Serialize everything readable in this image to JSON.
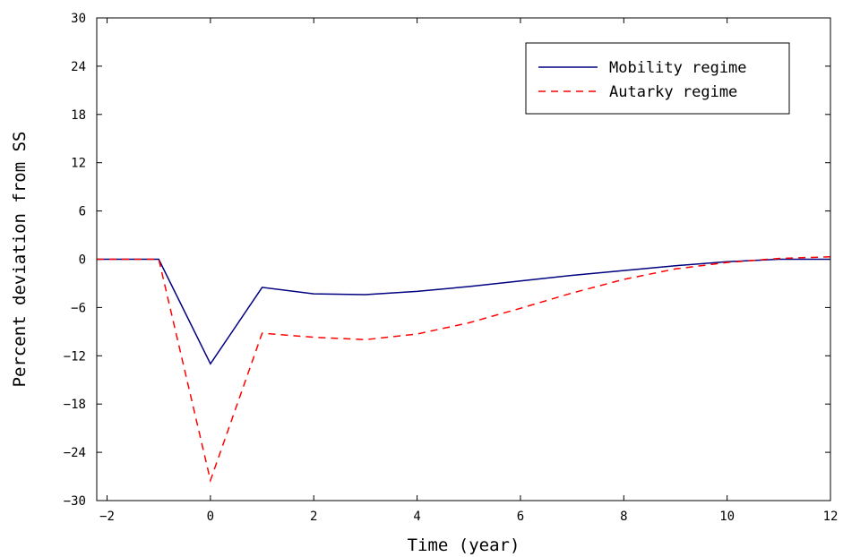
{
  "chart_data": {
    "type": "line",
    "xlabel": "Time (year)",
    "ylabel": "Percent deviation from SS",
    "xlim": [
      -2.2,
      12
    ],
    "ylim": [
      -30,
      30
    ],
    "xticks": [
      -2,
      0,
      2,
      4,
      6,
      8,
      10,
      12
    ],
    "yticks": [
      -30,
      -24,
      -18,
      -12,
      -6,
      0,
      6,
      12,
      18,
      24,
      30
    ],
    "xtick_labels": [
      "−2",
      "0",
      "2",
      "4",
      "6",
      "8",
      "10",
      "12"
    ],
    "ytick_labels": [
      "−30",
      "−24",
      "−18",
      "−12",
      "−6",
      "0",
      "6",
      "12",
      "18",
      "24",
      "30"
    ],
    "grid": false,
    "legend_position": "top-right",
    "series": [
      {
        "name": "Mobility regime",
        "color": "#000080",
        "style": "solid",
        "x": [
          -2.2,
          -1,
          0,
          1,
          2,
          3,
          4,
          5,
          6,
          7,
          8,
          9,
          10,
          11,
          12
        ],
        "y": [
          0,
          0,
          -13,
          -3.5,
          -4.3,
          -4.4,
          -4.0,
          -3.4,
          -2.7,
          -2.0,
          -1.4,
          -0.8,
          -0.3,
          0,
          0
        ]
      },
      {
        "name": "Autarky regime",
        "color": "#ff0000",
        "style": "dashed",
        "x": [
          -2.2,
          -1,
          0,
          1,
          2,
          3,
          4,
          5,
          6,
          7,
          8,
          9,
          10,
          11,
          12
        ],
        "y": [
          0,
          0,
          -27.5,
          -9.2,
          -9.7,
          -10.0,
          -9.3,
          -7.9,
          -6.1,
          -4.2,
          -2.5,
          -1.2,
          -0.4,
          0.1,
          0.3
        ]
      }
    ]
  }
}
